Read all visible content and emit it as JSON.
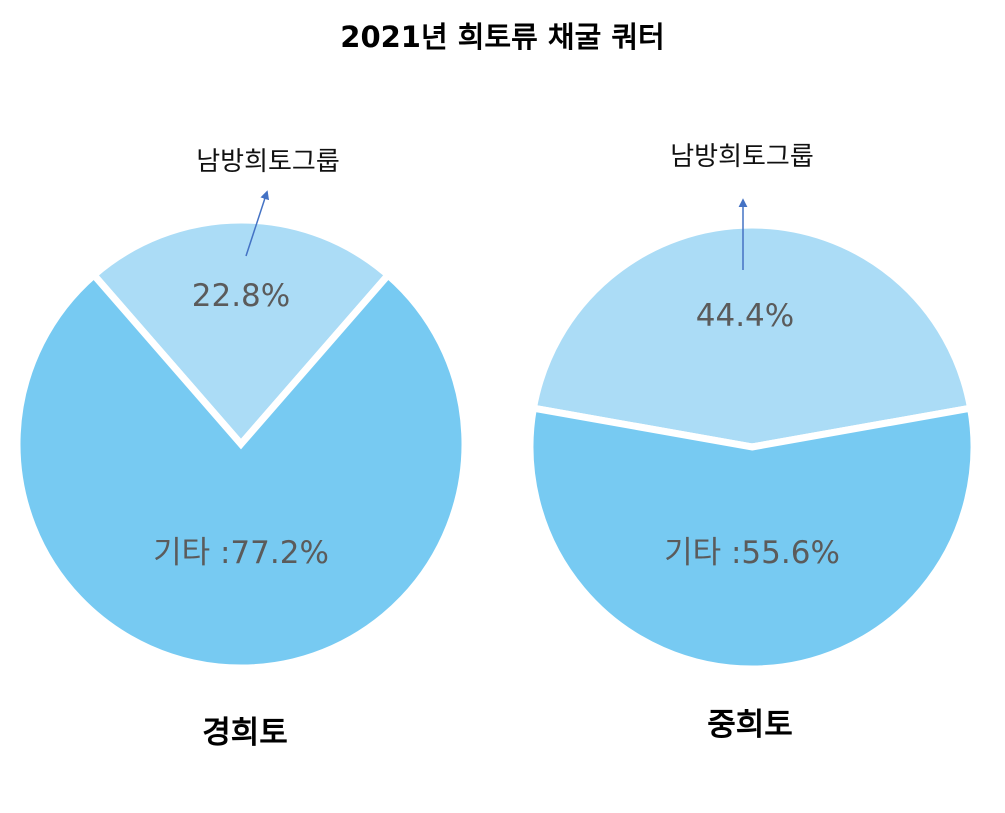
{
  "title": "2021년 희토류 채굴 쿼터",
  "chart_data": [
    {
      "type": "pie",
      "title": "경희토",
      "slices": [
        {
          "label": "남방희토그룹",
          "value": 22.8,
          "display": "22.8%",
          "color": "#abdcf6"
        },
        {
          "label": "기타",
          "value": 77.2,
          "display": "기타 :77.2%",
          "color": "#77caf2"
        }
      ],
      "callout": "남방희토그룹"
    },
    {
      "type": "pie",
      "title": "중희토",
      "slices": [
        {
          "label": "남방희토그룹",
          "value": 44.4,
          "display": "44.4%",
          "color": "#abdcf6"
        },
        {
          "label": "기타",
          "value": 55.6,
          "display": "기타 :55.6%",
          "color": "#77caf2"
        }
      ],
      "callout": "남방희토그룹"
    }
  ],
  "colors": {
    "arrow": "#4472c4",
    "separator": "#ffffff"
  }
}
